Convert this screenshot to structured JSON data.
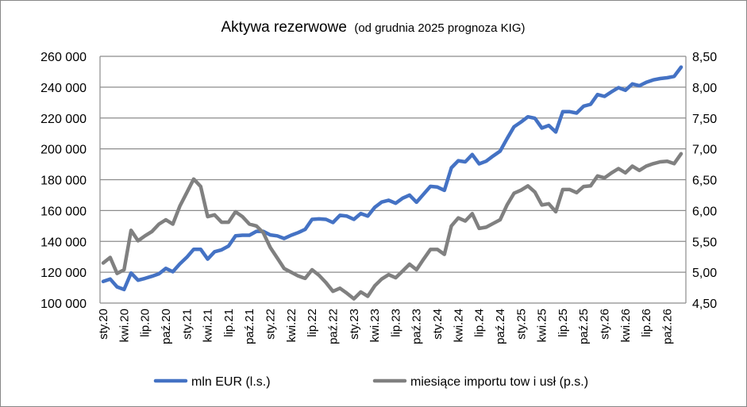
{
  "chart_data": {
    "type": "line",
    "title": "Aktywa rezerwowe",
    "subtitle": "(od grudnia 2025 prognoza KIG)",
    "x_tick_labels": [
      "sty.20",
      "kwi.20",
      "lip.20",
      "paź.20",
      "sty.21",
      "kwi.21",
      "lip.21",
      "paź.21",
      "sty.22",
      "kwi.22",
      "lip.22",
      "paź.22",
      "sty.23",
      "kwi.23",
      "lip.23",
      "paź.23",
      "sty.24",
      "kwi.24",
      "lip.24",
      "paź.24",
      "sty.25",
      "kwi.25",
      "lip.25",
      "paź.25",
      "sty.26",
      "kwi.26",
      "lip.26",
      "paź.26"
    ],
    "x_tick_every": 3,
    "left_axis": {
      "ylim": [
        100000,
        260000
      ],
      "step": 20000,
      "tick_labels": [
        "100 000",
        "120 000",
        "140 000",
        "160 000",
        "180 000",
        "200 000",
        "220 000",
        "240 000",
        "260 000"
      ]
    },
    "right_axis": {
      "ylim": [
        4.5,
        8.5
      ],
      "step": 0.5,
      "tick_labels": [
        "4,50",
        "5,00",
        "5,50",
        "6,00",
        "6,50",
        "7,00",
        "7,50",
        "8,00",
        "8,50"
      ]
    },
    "grid": true,
    "legend_position": "bottom",
    "series": [
      {
        "name": "mln EUR (l.s.)",
        "axis": "left",
        "color": "#4472C4",
        "values": [
          114000,
          115600,
          110500,
          108800,
          119500,
          114800,
          116000,
          117400,
          119000,
          122500,
          120300,
          125400,
          129700,
          134900,
          134900,
          128500,
          133300,
          134500,
          137000,
          143600,
          144000,
          144000,
          146500,
          146500,
          144200,
          143600,
          141900,
          144000,
          145700,
          147800,
          154300,
          154600,
          154300,
          152200,
          156900,
          156400,
          154300,
          158100,
          156400,
          162100,
          165500,
          166700,
          164700,
          168000,
          170000,
          165400,
          170600,
          175700,
          175200,
          173100,
          187700,
          192300,
          191600,
          196300,
          190300,
          192000,
          195400,
          198500,
          206600,
          214300,
          217400,
          220800,
          219800,
          213500,
          215200,
          210900,
          224100,
          224100,
          223200,
          227700,
          228900,
          235200,
          234000,
          237000,
          239700,
          238000,
          242100,
          240900,
          243200,
          244700,
          245600,
          246100,
          247000,
          253000
        ]
      },
      {
        "name": "miesiące importu tow i usł (p.s.)",
        "axis": "right",
        "color": "#808080",
        "values": [
          5.15,
          5.24,
          4.98,
          5.04,
          5.68,
          5.51,
          5.59,
          5.66,
          5.78,
          5.85,
          5.78,
          6.07,
          6.29,
          6.51,
          6.39,
          5.9,
          5.93,
          5.81,
          5.81,
          5.98,
          5.9,
          5.78,
          5.75,
          5.64,
          5.4,
          5.23,
          5.06,
          5.0,
          4.94,
          4.9,
          5.04,
          4.95,
          4.83,
          4.69,
          4.74,
          4.66,
          4.57,
          4.68,
          4.61,
          4.78,
          4.89,
          4.96,
          4.91,
          5.02,
          5.13,
          5.04,
          5.21,
          5.37,
          5.37,
          5.29,
          5.75,
          5.88,
          5.83,
          5.95,
          5.71,
          5.73,
          5.79,
          5.85,
          6.09,
          6.28,
          6.33,
          6.4,
          6.3,
          6.09,
          6.11,
          5.98,
          6.34,
          6.34,
          6.29,
          6.39,
          6.4,
          6.56,
          6.53,
          6.61,
          6.68,
          6.61,
          6.72,
          6.65,
          6.72,
          6.76,
          6.79,
          6.8,
          6.76,
          6.92
        ]
      }
    ]
  }
}
